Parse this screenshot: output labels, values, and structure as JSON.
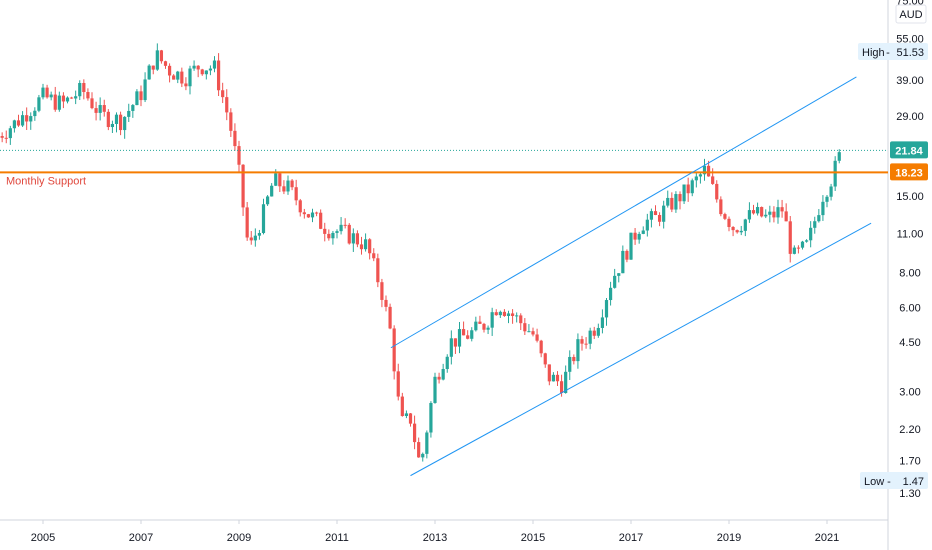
{
  "chart_data": {
    "type": "candlestick",
    "scale": "log",
    "currency": "AUD",
    "x_ticks": [
      "2005",
      "2007",
      "2009",
      "2011",
      "2013",
      "2015",
      "2017",
      "2019",
      "2021"
    ],
    "y_ticks": [
      1.3,
      1.7,
      2.2,
      3.0,
      4.5,
      6.0,
      8.0,
      11.0,
      15.0,
      29.0,
      39.0,
      55.0,
      75.0
    ],
    "y_tick_labels": [
      "1.30",
      "1.70",
      "2.20",
      "3.00",
      "4.50",
      "6.00",
      "8.00",
      "11.00",
      "15.00",
      "29.00",
      "39.00",
      "55.00",
      "75.00"
    ],
    "last_price": 21.84,
    "last_price_label": "21.84",
    "support": {
      "value": 18.23,
      "value_label": "18.23",
      "label": "Monthly Support"
    },
    "high": {
      "label": "High",
      "value": "51.53"
    },
    "low": {
      "label": "Low",
      "value": "1.47"
    },
    "channel_upper": {
      "start": [
        "2012.1",
        4.3
      ],
      "end": [
        "2021.6",
        40.0
      ]
    },
    "channel_lower": {
      "start": [
        "2012.5",
        1.5
      ],
      "end": [
        "2021.9",
        12.0
      ]
    },
    "price_path": [
      [
        "2004.0",
        24
      ],
      [
        "2004.5",
        28
      ],
      [
        "2005.0",
        34
      ],
      [
        "2005.4",
        32
      ],
      [
        "2005.8",
        36
      ],
      [
        "2006.2",
        29
      ],
      [
        "2006.6",
        28
      ],
      [
        "2007.0",
        35
      ],
      [
        "2007.3",
        48
      ],
      [
        "2007.6",
        42
      ],
      [
        "2007.9",
        40
      ],
      [
        "2008.2",
        44
      ],
      [
        "2008.5",
        43
      ],
      [
        "2008.8",
        28
      ],
      [
        "2009.0",
        18
      ],
      [
        "2009.2",
        9.5
      ],
      [
        "2009.5",
        13
      ],
      [
        "2009.7",
        17
      ],
      [
        "2010.0",
        16
      ],
      [
        "2010.4",
        13
      ],
      [
        "2010.8",
        11.5
      ],
      [
        "2011.2",
        11
      ],
      [
        "2011.6",
        10
      ],
      [
        "2011.9",
        7
      ],
      [
        "2012.1",
        4.8
      ],
      [
        "2012.3",
        2.3
      ],
      [
        "2012.5",
        2.4
      ],
      [
        "2012.7",
        1.6
      ],
      [
        "2013.0",
        3.3
      ],
      [
        "2013.3",
        4.5
      ],
      [
        "2013.7",
        4.8
      ],
      [
        "2014.0",
        5.2
      ],
      [
        "2014.3",
        6.2
      ],
      [
        "2014.7",
        5.4
      ],
      [
        "2015.0",
        4.8
      ],
      [
        "2015.3",
        3.4
      ],
      [
        "2015.6",
        3.2
      ],
      [
        "2015.9",
        4.3
      ],
      [
        "2016.3",
        5.2
      ],
      [
        "2016.6",
        7.5
      ],
      [
        "2016.9",
        9.5
      ],
      [
        "2017.2",
        12
      ],
      [
        "2017.5",
        12.5
      ],
      [
        "2017.8",
        14
      ],
      [
        "2018.2",
        16
      ],
      [
        "2018.5",
        18.5
      ],
      [
        "2018.8",
        14
      ],
      [
        "2019.1",
        11.5
      ],
      [
        "2019.5",
        13
      ],
      [
        "2019.8",
        12.5
      ],
      [
        "2020.1",
        13.5
      ],
      [
        "2020.3",
        9
      ],
      [
        "2020.6",
        10
      ],
      [
        "2020.9",
        15
      ],
      [
        "2021.1",
        17.5
      ],
      [
        "2021.3",
        21.84
      ]
    ]
  }
}
